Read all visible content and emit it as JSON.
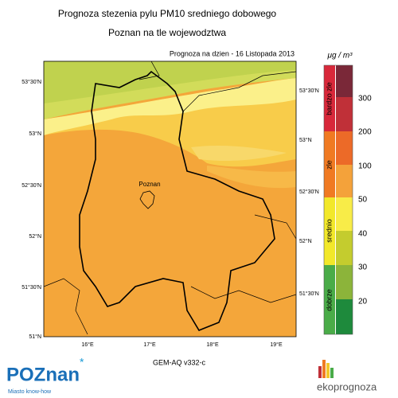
{
  "header": {
    "title": "Prognoza stezenia pylu PM10 sredniego dobowego",
    "subtitle": "Poznan na tle wojewodztwa",
    "date": "Prognoza na dzien -  16 Listopada 2013"
  },
  "map": {
    "city": "Poznan",
    "lat_left": [
      "53°30'N",
      "53°N",
      "52°30'N",
      "52°N",
      "51°30'N",
      "51°N"
    ],
    "lat_right": [
      "53°30'N",
      "53°N",
      "52°30'N",
      "52°N",
      "51°30'N"
    ],
    "lon": [
      "16°E",
      "17°E",
      "18°E",
      "19°E"
    ]
  },
  "legend": {
    "unit": "μg / m³",
    "categories": [
      "bardzo zle",
      "zle",
      "srednio",
      "dobrze"
    ],
    "ticks": [
      300,
      200,
      100,
      50,
      40,
      30,
      20
    ]
  },
  "footer": {
    "model": "GEM-AQ v332-c",
    "logo": "POZnan",
    "slogan": "Miasto know-how",
    "brand": "ekoprognoza"
  }
}
